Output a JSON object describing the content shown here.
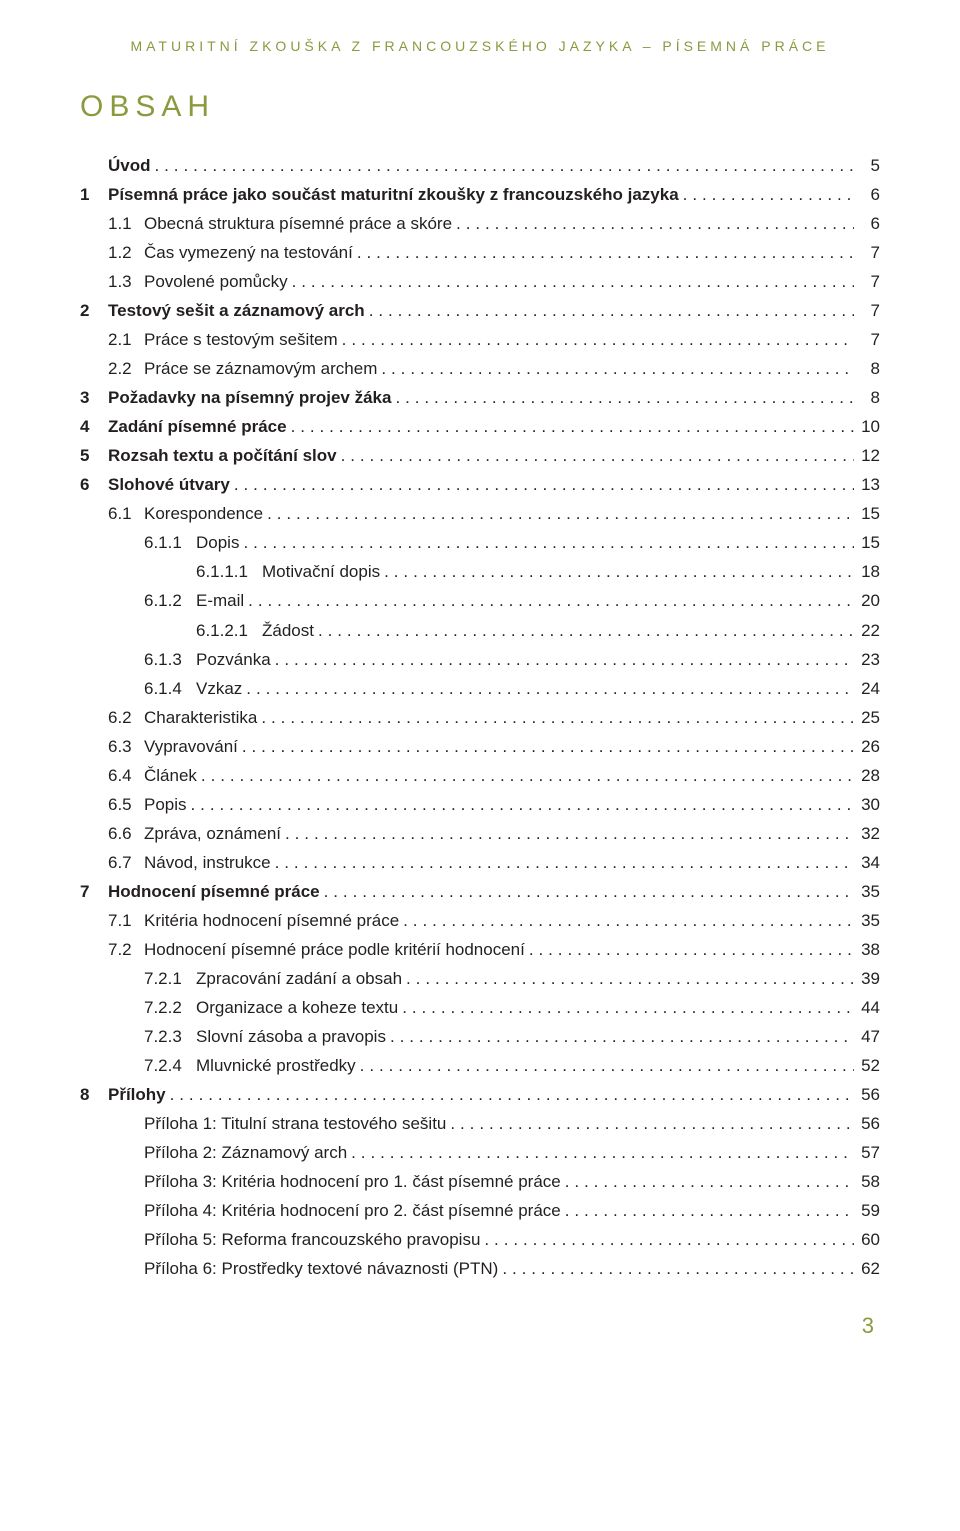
{
  "header": {
    "running_head": "MATURITNÍ ZKOUŠKA Z FRANCOUZSKÉHO JAZYKA – PÍSEMNÁ PRÁCE"
  },
  "title": "OBSAH",
  "page_number": "3",
  "colors": {
    "accent": "#8a9a3f",
    "text": "#231f20",
    "background": "#ffffff"
  },
  "toc": [
    {
      "num": "",
      "label": "Úvod",
      "page": "5",
      "bold": true,
      "indent": 0,
      "num_width": 28
    },
    {
      "num": "1",
      "label": "Písemná práce jako součást maturitní zkoušky z francouzského jazyka",
      "page": "6",
      "bold": true,
      "indent": 0,
      "num_width": 28
    },
    {
      "num": "1.1",
      "label": "Obecná struktura písemné práce a skóre",
      "page": "6",
      "bold": false,
      "indent": 28,
      "num_width": 36
    },
    {
      "num": "1.2",
      "label": "Čas vymezený na testování",
      "page": "7",
      "bold": false,
      "indent": 28,
      "num_width": 36
    },
    {
      "num": "1.3",
      "label": "Povolené pomůcky",
      "page": "7",
      "bold": false,
      "indent": 28,
      "num_width": 36
    },
    {
      "num": "2",
      "label": "Testový sešit a záznamový arch",
      "page": "7",
      "bold": true,
      "indent": 0,
      "num_width": 28
    },
    {
      "num": "2.1",
      "label": "Práce s testovým sešitem",
      "page": "7",
      "bold": false,
      "indent": 28,
      "num_width": 36
    },
    {
      "num": "2.2",
      "label": "Práce se záznamovým archem",
      "page": "8",
      "bold": false,
      "indent": 28,
      "num_width": 36
    },
    {
      "num": "3",
      "label": "Požadavky na písemný projev žáka",
      "page": "8",
      "bold": true,
      "indent": 0,
      "num_width": 28
    },
    {
      "num": "4",
      "label": "Zadání písemné práce",
      "page": "10",
      "bold": true,
      "indent": 0,
      "num_width": 28
    },
    {
      "num": "5",
      "label": "Rozsah textu a počítání slov",
      "page": "12",
      "bold": true,
      "indent": 0,
      "num_width": 28
    },
    {
      "num": "6",
      "label": "Slohové útvary",
      "page": "13",
      "bold": true,
      "indent": 0,
      "num_width": 28
    },
    {
      "num": "6.1",
      "label": "Korespondence",
      "page": "15",
      "bold": false,
      "indent": 28,
      "num_width": 36
    },
    {
      "num": "6.1.1",
      "label": "Dopis",
      "page": "15",
      "bold": false,
      "indent": 64,
      "num_width": 52
    },
    {
      "num": "6.1.1.1",
      "label": "Motivační dopis",
      "page": "18",
      "bold": false,
      "indent": 116,
      "num_width": 66
    },
    {
      "num": "6.1.2",
      "label": "E-mail",
      "page": "20",
      "bold": false,
      "indent": 64,
      "num_width": 52
    },
    {
      "num": "6.1.2.1",
      "label": "Žádost",
      "page": "22",
      "bold": false,
      "indent": 116,
      "num_width": 66
    },
    {
      "num": "6.1.3",
      "label": "Pozvánka",
      "page": "23",
      "bold": false,
      "indent": 64,
      "num_width": 52
    },
    {
      "num": "6.1.4",
      "label": "Vzkaz",
      "page": "24",
      "bold": false,
      "indent": 64,
      "num_width": 52
    },
    {
      "num": "6.2",
      "label": "Charakteristika",
      "page": "25",
      "bold": false,
      "indent": 28,
      "num_width": 36
    },
    {
      "num": "6.3",
      "label": "Vypravování",
      "page": "26",
      "bold": false,
      "indent": 28,
      "num_width": 36
    },
    {
      "num": "6.4",
      "label": "Článek",
      "page": "28",
      "bold": false,
      "indent": 28,
      "num_width": 36
    },
    {
      "num": "6.5",
      "label": "Popis",
      "page": "30",
      "bold": false,
      "indent": 28,
      "num_width": 36
    },
    {
      "num": "6.6",
      "label": "Zpráva, oznámení",
      "page": "32",
      "bold": false,
      "indent": 28,
      "num_width": 36
    },
    {
      "num": "6.7",
      "label": "Návod, instrukce",
      "page": "34",
      "bold": false,
      "indent": 28,
      "num_width": 36
    },
    {
      "num": "7",
      "label": "Hodnocení písemné práce",
      "page": "35",
      "bold": true,
      "indent": 0,
      "num_width": 28
    },
    {
      "num": "7.1",
      "label": "Kritéria hodnocení písemné práce",
      "page": "35",
      "bold": false,
      "indent": 28,
      "num_width": 36
    },
    {
      "num": "7.2",
      "label": "Hodnocení písemné práce podle kritérií hodnocení",
      "page": "38",
      "bold": false,
      "indent": 28,
      "num_width": 36
    },
    {
      "num": "7.2.1",
      "label": "Zpracování zadání a obsah",
      "page": "39",
      "bold": false,
      "indent": 64,
      "num_width": 52
    },
    {
      "num": "7.2.2",
      "label": "Organizace a koheze textu",
      "page": "44",
      "bold": false,
      "indent": 64,
      "num_width": 52
    },
    {
      "num": "7.2.3",
      "label": "Slovní zásoba a pravopis",
      "page": "47",
      "bold": false,
      "indent": 64,
      "num_width": 52
    },
    {
      "num": "7.2.4",
      "label": "Mluvnické prostředky",
      "page": "52",
      "bold": false,
      "indent": 64,
      "num_width": 52
    },
    {
      "num": "8",
      "label": "Přílohy",
      "page": "56",
      "bold": true,
      "indent": 0,
      "num_width": 28
    },
    {
      "num": "",
      "label": "Příloha 1: Titulní strana testového sešitu",
      "page": "56",
      "bold": false,
      "indent": 64,
      "num_width": 0
    },
    {
      "num": "",
      "label": "Příloha 2: Záznamový arch",
      "page": "57",
      "bold": false,
      "indent": 64,
      "num_width": 0
    },
    {
      "num": "",
      "label": "Příloha 3: Kritéria hodnocení pro 1. část písemné práce",
      "page": "58",
      "bold": false,
      "indent": 64,
      "num_width": 0
    },
    {
      "num": "",
      "label": "Příloha 4: Kritéria hodnocení pro 2. část písemné práce",
      "page": "59",
      "bold": false,
      "indent": 64,
      "num_width": 0
    },
    {
      "num": "",
      "label": "Příloha 5: Reforma francouzského pravopisu",
      "page": "60",
      "bold": false,
      "indent": 64,
      "num_width": 0
    },
    {
      "num": "",
      "label": "Příloha 6: Prostředky textové návaznosti (PTN)",
      "page": "62",
      "bold": false,
      "indent": 64,
      "num_width": 0
    }
  ]
}
